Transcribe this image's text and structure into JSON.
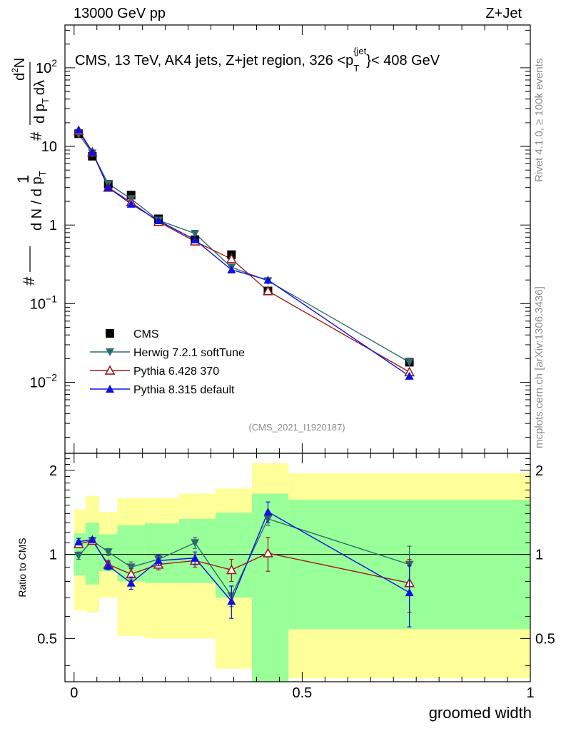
{
  "header": {
    "left": "13000 GeV pp",
    "right": "Z+Jet"
  },
  "side": {
    "rivet": "Rivet 4.1.0, ≥ 100k events",
    "mcplots": "mcplots.cern.ch [arXiv:1306.3436]"
  },
  "chart_data": {
    "type": "line",
    "title": "CMS, 13 TeV, AK4 jets, Z+jet region, 326 <p",
    "title_sup": "{jet",
    "title_sub": "T",
    "title_tail": "}< 408 GeV",
    "watermark": "(CMS_2021_I1920187)",
    "xlabel": "groomed width",
    "ylabel_top": "1 / dN/dpT  ·  d²N / (dpT dλ)",
    "ylabel_top_parts": {
      "hash": "#",
      "one": "1",
      "dn": "d N / d p",
      "t": "T",
      "d2n": "d",
      "two": "2",
      "n": "N",
      "dpt": "d p",
      "dlam": "dλ"
    },
    "ylabel_bottom": "Ratio to CMS",
    "xlim": [
      -0.02,
      1.0
    ],
    "ylim_main": [
      0.00125,
      350
    ],
    "ylim_ratio": [
      0.35,
      2.3
    ],
    "xticks": [
      {
        "v": 0,
        "label": "0"
      },
      {
        "v": 0.5,
        "label": "0.5"
      },
      {
        "v": 1,
        "label": "1"
      }
    ],
    "yticks_main": [
      {
        "v": 0.01,
        "base": "10",
        "exp": "−2"
      },
      {
        "v": 0.1,
        "base": "10",
        "exp": "−1"
      },
      {
        "v": 1,
        "base": "1",
        "exp": ""
      },
      {
        "v": 10,
        "base": "10",
        "exp": ""
      },
      {
        "v": 100,
        "base": "10",
        "exp": "2"
      }
    ],
    "yticks_ratio": [
      {
        "v": 0.5,
        "label": "0.5"
      },
      {
        "v": 1,
        "label": "1"
      },
      {
        "v": 2,
        "label": "2"
      }
    ],
    "bin_edges": [
      0,
      0.025,
      0.055,
      0.095,
      0.155,
      0.23,
      0.31,
      0.39,
      0.47,
      1.0
    ],
    "x": [
      0.01,
      0.04,
      0.075,
      0.125,
      0.185,
      0.265,
      0.345,
      0.425,
      0.735
    ],
    "data": {
      "name": "CMS",
      "values": [
        14.5,
        7.5,
        3.3,
        2.4,
        1.2,
        0.65,
        0.42,
        0.145,
        0.018
      ]
    },
    "bands": {
      "yellow": [
        [
          0.63,
          1.45
        ],
        [
          0.62,
          1.62
        ],
        [
          0.7,
          1.42
        ],
        [
          0.51,
          1.59
        ],
        [
          0.5,
          1.59
        ],
        [
          0.5,
          1.65
        ],
        [
          0.39,
          1.72
        ],
        [
          0.35,
          2.12
        ],
        [
          0.36,
          1.95
        ]
      ],
      "green": [
        [
          0.84,
          1.19
        ],
        [
          0.78,
          1.3
        ],
        [
          0.87,
          1.18
        ],
        [
          0.8,
          1.27
        ],
        [
          0.79,
          1.29
        ],
        [
          0.79,
          1.34
        ],
        [
          0.7,
          1.41
        ],
        [
          0.35,
          1.65
        ],
        [
          0.54,
          1.57
        ]
      ]
    },
    "series": [
      {
        "name": "Herwig 7.2.1 softTune",
        "marker": "triangle-down",
        "color": "#2e6b6e",
        "values": [
          14.3,
          8.2,
          3.35,
          2.15,
          1.15,
          0.78,
          0.29,
          0.195,
          0.018
        ],
        "ratio": [
          0.99,
          1.12,
          1.02,
          0.9,
          0.96,
          1.1,
          0.71,
          1.34,
          0.92
        ],
        "ratio_err": [
          0.03,
          0.02,
          0.03,
          0.04,
          0.03,
          0.05,
          0.06,
          0.07,
          0.15
        ]
      },
      {
        "name": "Pythia 6.428 370",
        "marker": "triangle-open",
        "color": "#9b1c1c",
        "values": [
          15.8,
          8.4,
          3.0,
          1.95,
          1.1,
          0.62,
          0.37,
          0.145,
          0.0135
        ],
        "ratio": [
          1.09,
          1.12,
          0.92,
          0.85,
          0.92,
          0.95,
          0.88,
          1.01,
          0.79
        ],
        "ratio_err": [
          0.03,
          0.02,
          0.03,
          0.04,
          0.04,
          0.05,
          0.08,
          0.14,
          0.17
        ]
      },
      {
        "name": "Pythia 8.315 default",
        "marker": "triangle-up",
        "color": "#1010e0",
        "values": [
          16.2,
          8.5,
          3.0,
          1.85,
          1.14,
          0.65,
          0.27,
          0.2,
          0.012
        ],
        "ratio": [
          1.11,
          1.13,
          0.91,
          0.79,
          0.95,
          0.97,
          0.68,
          1.42,
          0.73
        ],
        "ratio_err": [
          0.03,
          0.02,
          0.03,
          0.04,
          0.04,
          0.05,
          0.09,
          0.12,
          0.18
        ]
      }
    ]
  }
}
